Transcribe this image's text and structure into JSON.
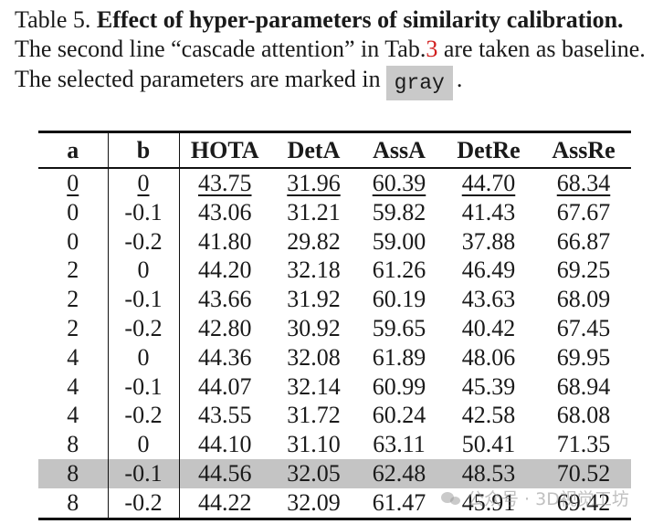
{
  "caption": {
    "label": "Table 5.",
    "title": "Effect of hyper-parameters of similarity calibration.",
    "line2_before": "The second line “cascade attention” in Tab.",
    "line2_ref": "3",
    "line2_after": " are taken as baseline.",
    "line3_before": "The selected parameters are marked in",
    "line3_gray": "gray",
    "line3_after": "."
  },
  "table": {
    "headers": [
      "a",
      "b",
      "HOTA",
      "DetA",
      "AssA",
      "DetRe",
      "AssRe"
    ],
    "rows": [
      {
        "a": "0",
        "b": "0",
        "HOTA": "43.75",
        "DetA": "31.96",
        "AssA": "60.39",
        "DetRe": "44.70",
        "AssRe": "68.34"
      },
      {
        "a": "0",
        "b": "-0.1",
        "HOTA": "43.06",
        "DetA": "31.21",
        "AssA": "59.82",
        "DetRe": "41.43",
        "AssRe": "67.67"
      },
      {
        "a": "0",
        "b": "-0.2",
        "HOTA": "41.80",
        "DetA": "29.82",
        "AssA": "59.00",
        "DetRe": "37.88",
        "AssRe": "66.87"
      },
      {
        "a": "2",
        "b": "0",
        "HOTA": "44.20",
        "DetA": "32.18",
        "AssA": "61.26",
        "DetRe": "46.49",
        "AssRe": "69.25"
      },
      {
        "a": "2",
        "b": "-0.1",
        "HOTA": "43.66",
        "DetA": "31.92",
        "AssA": "60.19",
        "DetRe": "43.63",
        "AssRe": "68.09"
      },
      {
        "a": "2",
        "b": "-0.2",
        "HOTA": "42.80",
        "DetA": "30.92",
        "AssA": "59.65",
        "DetRe": "40.42",
        "AssRe": "67.45"
      },
      {
        "a": "4",
        "b": "0",
        "HOTA": "44.36",
        "DetA": "32.08",
        "AssA": "61.89",
        "DetRe": "48.06",
        "AssRe": "69.95"
      },
      {
        "a": "4",
        "b": "-0.1",
        "HOTA": "44.07",
        "DetA": "32.14",
        "AssA": "60.99",
        "DetRe": "45.39",
        "AssRe": "68.94"
      },
      {
        "a": "4",
        "b": "-0.2",
        "HOTA": "43.55",
        "DetA": "31.72",
        "AssA": "60.24",
        "DetRe": "42.58",
        "AssRe": "68.08"
      },
      {
        "a": "8",
        "b": "0",
        "HOTA": "44.10",
        "DetA": "31.10",
        "AssA": "63.11",
        "DetRe": "50.41",
        "AssRe": "71.35"
      },
      {
        "a": "8",
        "b": "-0.1",
        "HOTA": "44.56",
        "DetA": "32.05",
        "AssA": "62.48",
        "DetRe": "48.53",
        "AssRe": "70.52"
      },
      {
        "a": "8",
        "b": "-0.2",
        "HOTA": "44.22",
        "DetA": "32.09",
        "AssA": "61.47",
        "DetRe": "45.91",
        "AssRe": "69.42"
      }
    ],
    "baseline_row": 0,
    "selected_row": 10,
    "selected_color": "#c4c4c4",
    "ref_color": "#d11f1f"
  },
  "watermark": {
    "text": "公众号 · 3D视觉工坊",
    "icon": "wechat-icon"
  }
}
